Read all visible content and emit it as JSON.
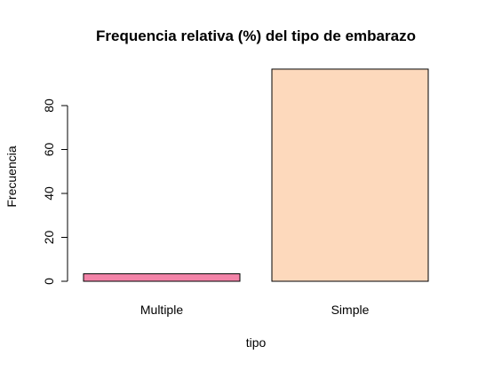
{
  "chart_data": {
    "type": "bar",
    "title": "Frequencia relativa (%) del tipo de embarazo",
    "xlabel": "tipo",
    "ylabel": "Frecuencia",
    "categories": [
      "Multiple",
      "Simple"
    ],
    "values": [
      3.4,
      96.6
    ],
    "colors": [
      "#F384A8",
      "#FDD9BC"
    ],
    "ylim": [
      0,
      100
    ],
    "yticks": [
      0,
      20,
      40,
      60,
      80
    ],
    "grid": false,
    "legend": "none"
  }
}
